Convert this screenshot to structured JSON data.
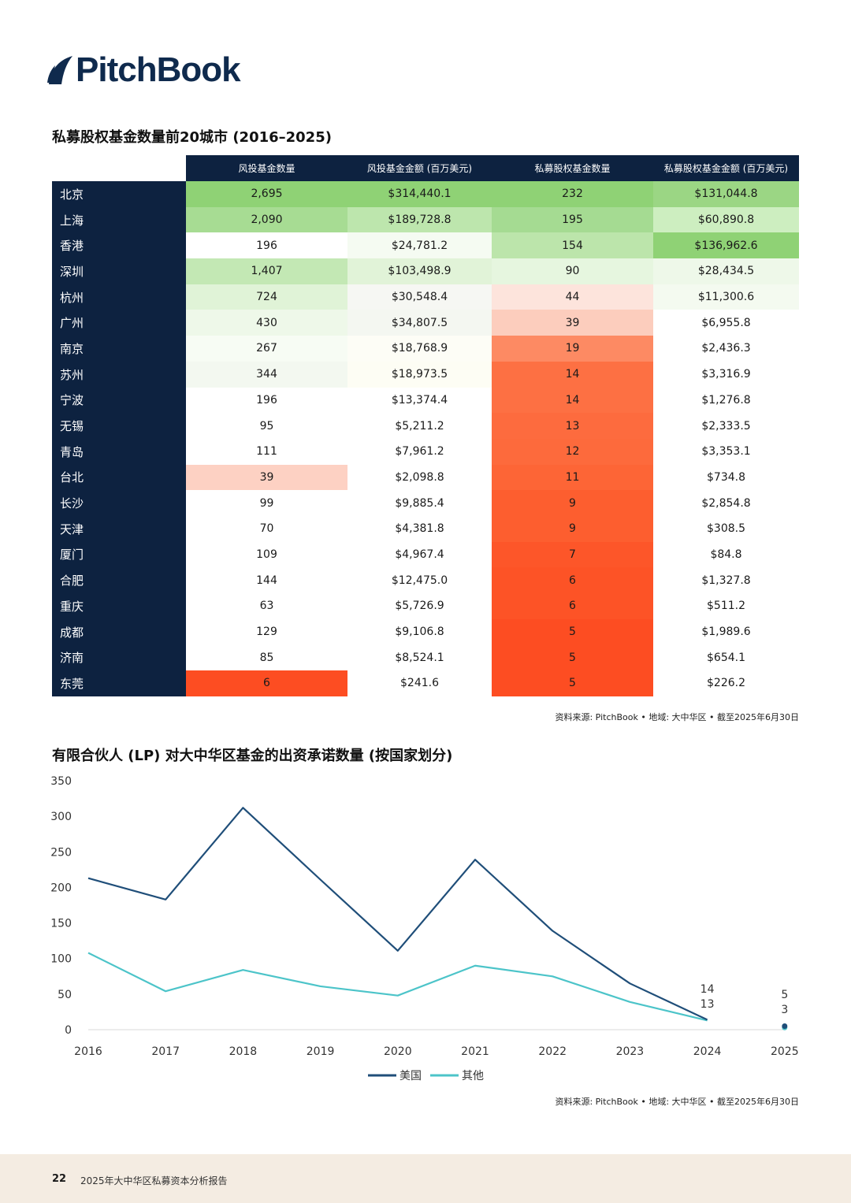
{
  "logo": {
    "text": "PitchBook",
    "brand_color": "#0f2a4d"
  },
  "table": {
    "title": "私募股权基金数量前20城市 (2016–2025)",
    "headers": [
      "风投基金数量",
      "风投基金金额 (百万美元)",
      "私募股权基金数量",
      "私募股权基金金额 (百万美元)"
    ],
    "rows": [
      {
        "city": "北京",
        "vals": [
          "2,695",
          "$314,440.1",
          "232",
          "$131,044.8"
        ],
        "bg": [
          "#8fd275",
          "#8fd275",
          "#8fd275",
          "#9bd684"
        ]
      },
      {
        "city": "上海",
        "vals": [
          "2,090",
          "$189,728.8",
          "195",
          "$60,890.8"
        ],
        "bg": [
          "#a7dc93",
          "#bde6ad",
          "#a5db92",
          "#cdeec0"
        ]
      },
      {
        "city": "香港",
        "vals": [
          "196",
          "$24,781.2",
          "154",
          "$136,962.6"
        ],
        "bg": [
          "#ffffff",
          "#f5fbf2",
          "#bce5ab",
          "#8fd275"
        ]
      },
      {
        "city": "深圳",
        "vals": [
          "1,407",
          "$103,498.9",
          "90",
          "$28,434.5"
        ],
        "bg": [
          "#c3e8b4",
          "#e1f3d8",
          "#e6f6df",
          "#eef8e9"
        ]
      },
      {
        "city": "杭州",
        "vals": [
          "724",
          "$30,548.4",
          "44",
          "$11,300.6"
        ],
        "bg": [
          "#e0f3d7",
          "#f6f7f3",
          "#fde4dc",
          "#f4faf0"
        ]
      },
      {
        "city": "广州",
        "vals": [
          "430",
          "$34,807.5",
          "39",
          "$6,955.8"
        ],
        "bg": [
          "#eef8e9",
          "#f4f7f1",
          "#fccdbd",
          "#ffffff"
        ]
      },
      {
        "city": "南京",
        "vals": [
          "267",
          "$18,768.9",
          "19",
          "$2,436.3"
        ],
        "bg": [
          "#f7fcf4",
          "#fdfdf6",
          "#fd8a63",
          "#ffffff"
        ]
      },
      {
        "city": "苏州",
        "vals": [
          "344",
          "$18,973.5",
          "14",
          "$3,316.9"
        ],
        "bg": [
          "#f3f8f0",
          "#fdfdf4",
          "#fd7043",
          "#ffffff"
        ]
      },
      {
        "city": "宁波",
        "vals": [
          "196",
          "$13,374.4",
          "14",
          "$1,276.8"
        ],
        "bg": [
          "#ffffff",
          "#ffffff",
          "#fd7043",
          "#ffffff"
        ]
      },
      {
        "city": "无锡",
        "vals": [
          "95",
          "$5,211.2",
          "13",
          "$2,333.5"
        ],
        "bg": [
          "#ffffff",
          "#ffffff",
          "#fd6b3e",
          "#ffffff"
        ]
      },
      {
        "city": "青岛",
        "vals": [
          "111",
          "$7,961.2",
          "12",
          "$3,353.1"
        ],
        "bg": [
          "#ffffff",
          "#ffffff",
          "#fd6a3c",
          "#ffffff"
        ]
      },
      {
        "city": "台北",
        "vals": [
          "39",
          "$2,098.8",
          "11",
          "$734.8"
        ],
        "bg": [
          "#fdd1c3",
          "#ffffff",
          "#fd6536",
          "#ffffff"
        ]
      },
      {
        "city": "长沙",
        "vals": [
          "99",
          "$9,885.4",
          "9",
          "$2,854.8"
        ],
        "bg": [
          "#ffffff",
          "#ffffff",
          "#fd5e2f",
          "#ffffff"
        ]
      },
      {
        "city": "天津",
        "vals": [
          "70",
          "$4,381.8",
          "9",
          "$308.5"
        ],
        "bg": [
          "#ffffff",
          "#ffffff",
          "#fd5e2f",
          "#ffffff"
        ]
      },
      {
        "city": "厦门",
        "vals": [
          "109",
          "$4,967.4",
          "7",
          "$84.8"
        ],
        "bg": [
          "#ffffff",
          "#ffffff",
          "#fd5629",
          "#ffffff"
        ]
      },
      {
        "city": "合肥",
        "vals": [
          "144",
          "$12,475.0",
          "6",
          "$1,327.8"
        ],
        "bg": [
          "#ffffff",
          "#ffffff",
          "#fd5326",
          "#ffffff"
        ]
      },
      {
        "city": "重庆",
        "vals": [
          "63",
          "$5,726.9",
          "6",
          "$511.2"
        ],
        "bg": [
          "#ffffff",
          "#ffffff",
          "#fd5326",
          "#ffffff"
        ]
      },
      {
        "city": "成都",
        "vals": [
          "129",
          "$9,106.8",
          "5",
          "$1,989.6"
        ],
        "bg": [
          "#ffffff",
          "#ffffff",
          "#fd4d22",
          "#ffffff"
        ]
      },
      {
        "city": "济南",
        "vals": [
          "85",
          "$8,524.1",
          "5",
          "$654.1"
        ],
        "bg": [
          "#ffffff",
          "#ffffff",
          "#fd4d22",
          "#ffffff"
        ]
      },
      {
        "city": "东莞",
        "vals": [
          "6",
          "$241.6",
          "5",
          "$226.2"
        ],
        "bg": [
          "#fd4d22",
          "#ffffff",
          "#fd4d22",
          "#ffffff"
        ]
      }
    ],
    "source": "资料来源: PitchBook • 地域: 大中华区 • 截至2025年6月30日"
  },
  "chart_data": {
    "type": "line",
    "title": "有限合伙人 (LP) 对大中华区基金的出资承诺数量 (按国家划分)",
    "x": [
      "2016",
      "2017",
      "2018",
      "2019",
      "2020",
      "2021",
      "2022",
      "2023",
      "2024",
      "2025"
    ],
    "ylim": [
      0,
      350
    ],
    "yticks": [
      0,
      50,
      100,
      150,
      200,
      250,
      300,
      350
    ],
    "grid": false,
    "legend_position": "bottom",
    "series": [
      {
        "name": "美国",
        "color": "#1f4e79",
        "values": [
          213,
          183,
          312,
          211,
          111,
          239,
          139,
          65,
          14,
          5
        ]
      },
      {
        "name": "其他",
        "color": "#4cc4c9",
        "values": [
          108,
          54,
          84,
          61,
          48,
          90,
          75,
          39,
          13,
          3
        ]
      }
    ],
    "point_labels": [
      {
        "x": "2024",
        "text": "14"
      },
      {
        "x": "2024",
        "text": "13"
      },
      {
        "x": "2025",
        "text": "5"
      },
      {
        "x": "2025",
        "text": "3"
      }
    ],
    "source": "资料来源: PitchBook • 地域: 大中华区 • 截至2025年6月30日"
  },
  "footer": {
    "page": "22",
    "report": "2025年大中华区私募资本分析报告",
    "bg": "#f4ece2"
  }
}
